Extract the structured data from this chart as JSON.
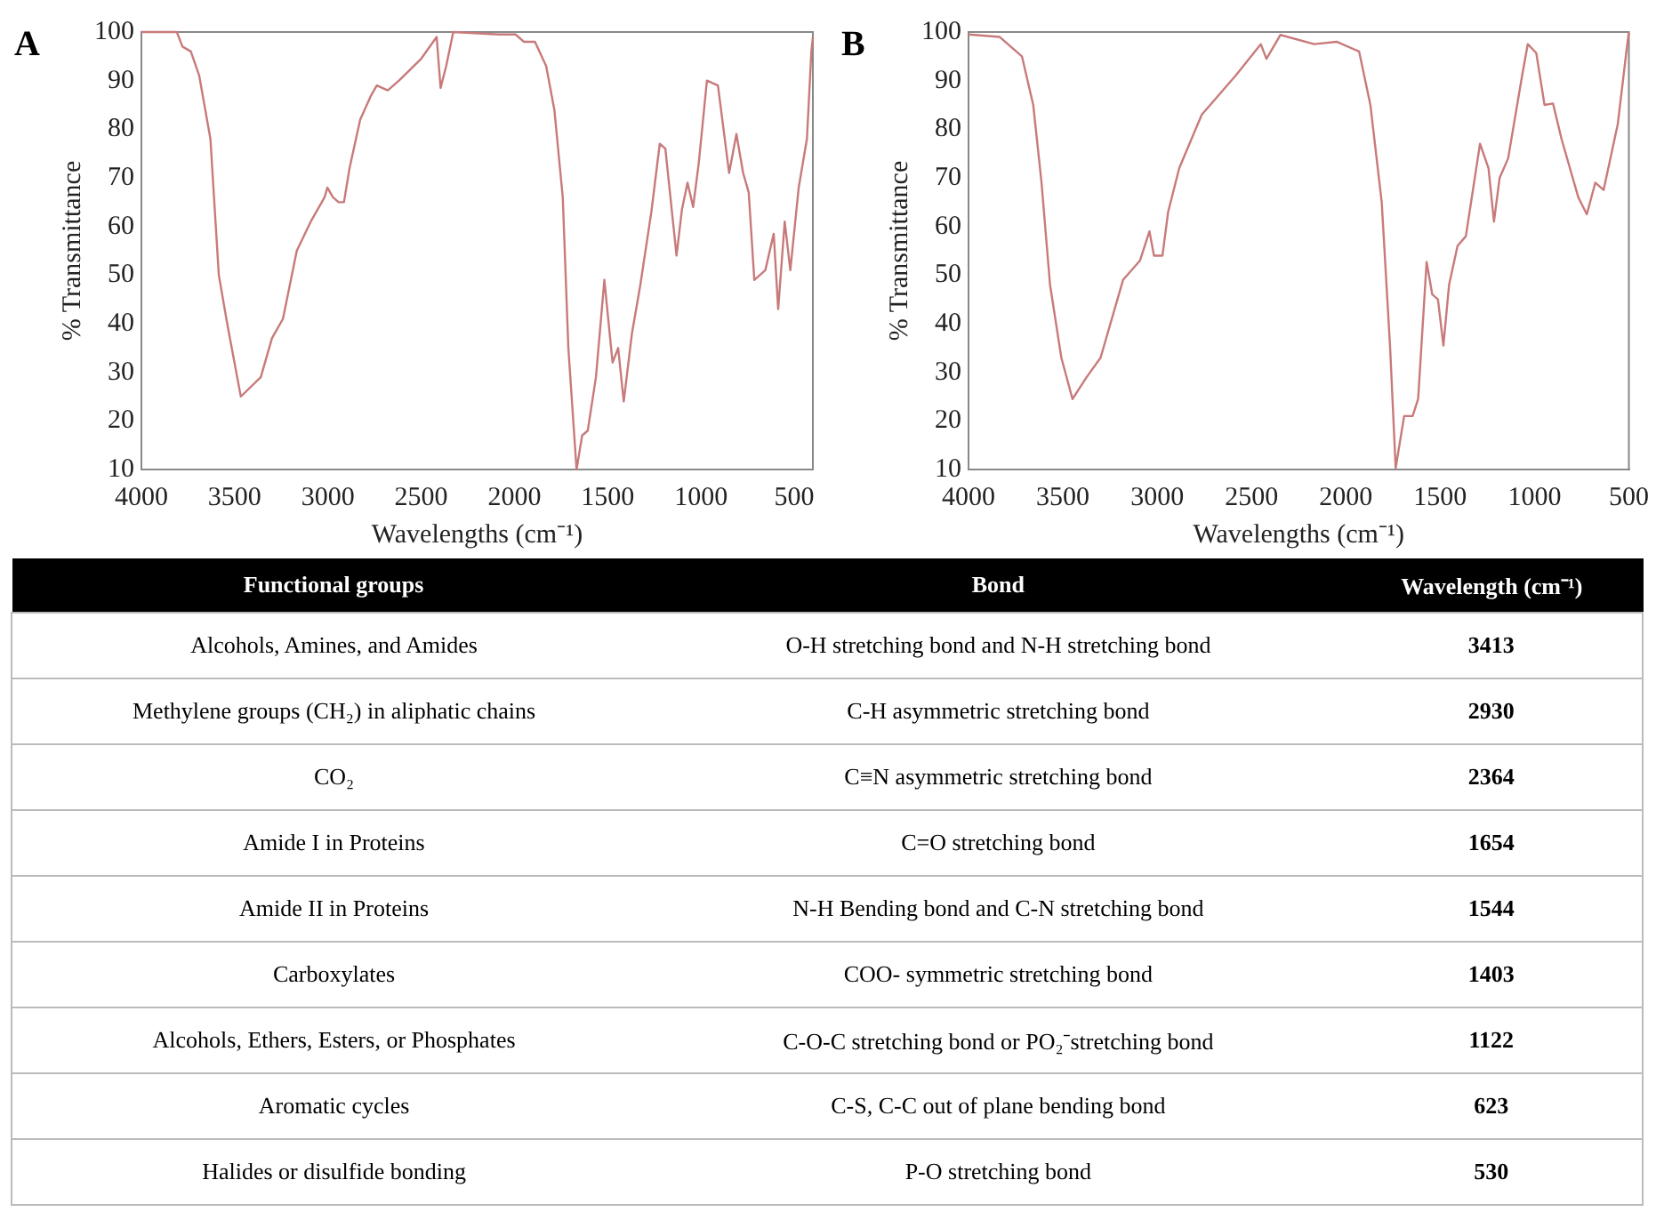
{
  "chart_data": [
    {
      "type": "line",
      "title": "A",
      "xlabel": "Wavelengths (cm⁻¹)",
      "ylabel": "% Transmittance",
      "xlim": [
        4000,
        400
      ],
      "xticks": [
        4000,
        3500,
        3000,
        2500,
        2000,
        1500,
        1000,
        500
      ],
      "ylim": [
        10,
        100
      ],
      "yticks": [
        10,
        20,
        30,
        40,
        50,
        60,
        70,
        80,
        90,
        100
      ],
      "grid": false,
      "series": [
        {
          "color": "#c87a7a",
          "x": [
            4000,
            3810,
            3780,
            3735,
            3690,
            3630,
            3585,
            3540,
            3467,
            3360,
            3300,
            3241,
            3167,
            3092,
            3018,
            3003,
            2973,
            2943,
            2914,
            2884,
            2827,
            2768,
            2738,
            2679,
            2619,
            2500,
            2417,
            2396,
            2366,
            2328,
            2084,
            1994,
            1950,
            1890,
            1830,
            1786,
            1741,
            1711,
            1667,
            1637,
            1607,
            1563,
            1518,
            1474,
            1444,
            1414,
            1370,
            1325,
            1266,
            1221,
            1191,
            1131,
            1102,
            1072,
            1042,
            1012,
            968,
            909,
            849,
            810,
            774,
            744,
            714,
            655,
            610,
            586,
            551,
            521,
            476,
            432,
            408,
            400
          ],
          "values": [
            100,
            100,
            97,
            96,
            91,
            78,
            50,
            40,
            25,
            29,
            37,
            41,
            55,
            61,
            66,
            68,
            66,
            65,
            65,
            72,
            82,
            87,
            89,
            88,
            90,
            94.5,
            99,
            88.5,
            93,
            100,
            99.5,
            99.5,
            98,
            98,
            93,
            84,
            66,
            35,
            10,
            17,
            18,
            29,
            49,
            32,
            35,
            24,
            38,
            48,
            63,
            77,
            76,
            54,
            63.5,
            69,
            64,
            73,
            90,
            89,
            71,
            79,
            71,
            67,
            49,
            51,
            58.5,
            43,
            61,
            51,
            68,
            78,
            96,
            99
          ]
        }
      ]
    },
    {
      "type": "line",
      "title": "B",
      "xlabel": "Wavelengths (cm⁻¹)",
      "ylabel": "% Transmittance",
      "xlim": [
        4000,
        500
      ],
      "xticks": [
        4000,
        3500,
        3000,
        2500,
        2000,
        1500,
        1000,
        500
      ],
      "ylim": [
        10,
        100
      ],
      "yticks": [
        10,
        20,
        30,
        40,
        50,
        60,
        70,
        80,
        90,
        100
      ],
      "grid": false,
      "series": [
        {
          "color": "#c87a7a",
          "x": [
            4000,
            3836,
            3717,
            3657,
            3613,
            3568,
            3508,
            3449,
            3374,
            3300,
            3181,
            3091,
            3041,
            3017,
            2972,
            2942,
            2883,
            2764,
            2585,
            2451,
            2421,
            2347,
            2168,
            2049,
            1930,
            1870,
            1810,
            1766,
            1736,
            1691,
            1646,
            1617,
            1572,
            1542,
            1512,
            1483,
            1453,
            1408,
            1364,
            1289,
            1244,
            1215,
            1185,
            1140,
            1066,
            1036,
            991,
            947,
            902,
            857,
            768,
            723,
            678,
            634,
            559,
            514,
            500
          ],
          "values": [
            99.5,
            99,
            95,
            85,
            69,
            48,
            33,
            24.5,
            29,
            33,
            49,
            53,
            59,
            54,
            54,
            63,
            72,
            83,
            91,
            97.5,
            94.5,
            99.4,
            97.5,
            98,
            96,
            85,
            65,
            35.5,
            10.3,
            21,
            21,
            24.5,
            52.7,
            46,
            45,
            35.5,
            48,
            56,
            58,
            77,
            72,
            61,
            70,
            74,
            91,
            97.5,
            95.7,
            85,
            85.3,
            78,
            66,
            62.5,
            69,
            67.5,
            81,
            95.7,
            100
          ]
        }
      ]
    },
    {
      "type": "other",
      "annotations": [
        "Functional groups",
        "Bond",
        "Wavelength (cm⁻¹)",
        "Alcohols, Amines, and Amides",
        "O-H stretching bond and N-H stretching bond",
        "3413",
        "Methylene groups (CH₂) in aliphatic chains",
        "C-H asymmetric stretching bond",
        "2930",
        "CO₂",
        "C≡N asymmetric stretching bond",
        "2364",
        "Amide I in Proteins",
        "C=O stretching bond",
        "1654",
        "Amide II in Proteins",
        "N-H Bending bond and C-N stretching bond",
        "1544",
        "Carboxylates",
        "COO- symmetric stretching bond",
        "1403",
        "Alcohols, Ethers, Esters, or Phosphates",
        "C-O-C stretching bond or PO₂⁻stretching bond",
        "1122",
        "Aromatic cycles",
        "C-S, C-C out of plane bending bond",
        "623",
        "Halides or disulfide bonding",
        "P-O stretching bond",
        "530"
      ]
    }
  ]
}
